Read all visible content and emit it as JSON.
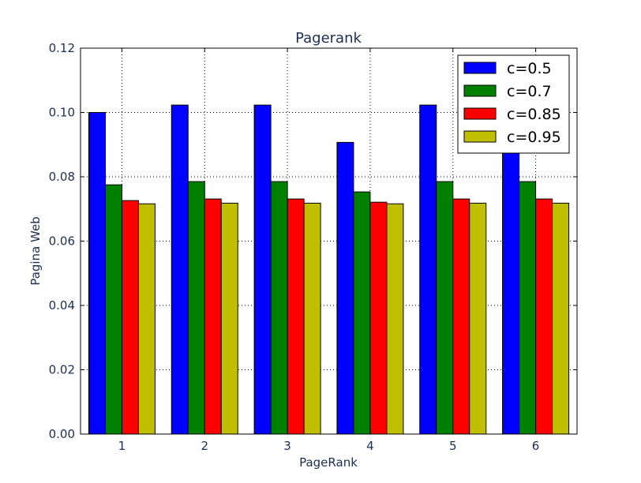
{
  "chart_data": {
    "type": "bar",
    "title": "Pagerank",
    "xlabel": "PageRank",
    "ylabel": "Pagina Web",
    "categories": [
      "1",
      "2",
      "3",
      "4",
      "5",
      "6"
    ],
    "ylim": [
      0,
      0.12
    ],
    "yticks": [
      "0.00",
      "0.02",
      "0.04",
      "0.06",
      "0.08",
      "0.10",
      "0.12"
    ],
    "grid": true,
    "legend_position": "top-right",
    "series": [
      {
        "name": "c=0.5",
        "color": "#0000ff",
        "values": [
          0.1,
          0.1023,
          0.1023,
          0.0907,
          0.1023,
          0.094
        ]
      },
      {
        "name": "c=0.7",
        "color": "#008000",
        "values": [
          0.0775,
          0.0785,
          0.0785,
          0.0753,
          0.0785,
          0.0785
        ]
      },
      {
        "name": "c=0.85",
        "color": "#ff0000",
        "values": [
          0.0726,
          0.0731,
          0.0731,
          0.0721,
          0.0731,
          0.0731
        ]
      },
      {
        "name": "c=0.95",
        "color": "#bfbf00",
        "values": [
          0.0716,
          0.0718,
          0.0718,
          0.0716,
          0.0718,
          0.0718
        ]
      }
    ]
  }
}
